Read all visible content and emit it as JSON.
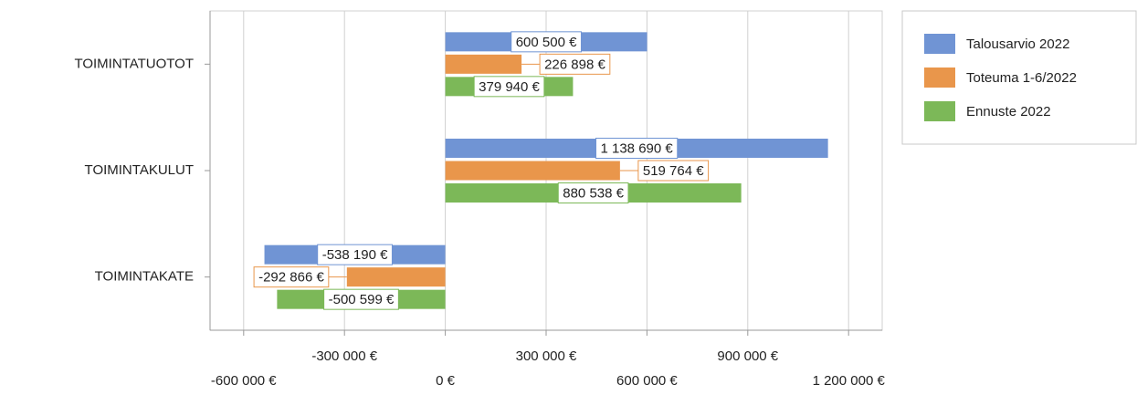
{
  "chart_data": {
    "type": "bar",
    "orientation": "horizontal",
    "categories": [
      "TOIMINTATUOTOT",
      "TOIMINTAKULUT",
      "TOIMINTAKATE"
    ],
    "series": [
      {
        "name": "Talousarvio 2022",
        "color": "#7094d4",
        "values": [
          600500,
          1138690,
          -538190
        ],
        "value_labels": [
          "600 500 €",
          "1 138 690 €",
          "-538 190 €"
        ]
      },
      {
        "name": "Toteuma 1-6/2022",
        "color": "#e9964b",
        "values": [
          226898,
          519764,
          -292866
        ],
        "value_labels": [
          "226 898 €",
          "519 764 €",
          "-292 866 €"
        ]
      },
      {
        "name": "Ennuste 2022",
        "color": "#7cb858",
        "values": [
          379940,
          880538,
          -500599
        ],
        "value_labels": [
          "379 940 €",
          "880 538 €",
          "-500 599 €"
        ]
      }
    ],
    "xlim": [
      -700000,
      1300000
    ],
    "xticks": [
      {
        "value": -600000,
        "label": "-600 000 €"
      },
      {
        "value": -300000,
        "label": "-300 000 €"
      },
      {
        "value": 0,
        "label": "0 €"
      },
      {
        "value": 300000,
        "label": "300 000 €"
      },
      {
        "value": 600000,
        "label": "600 000 €"
      },
      {
        "value": 900000,
        "label": "900 000 €"
      },
      {
        "value": 1200000,
        "label": "1 200 000 €"
      }
    ],
    "grid": true,
    "legend": "right"
  }
}
